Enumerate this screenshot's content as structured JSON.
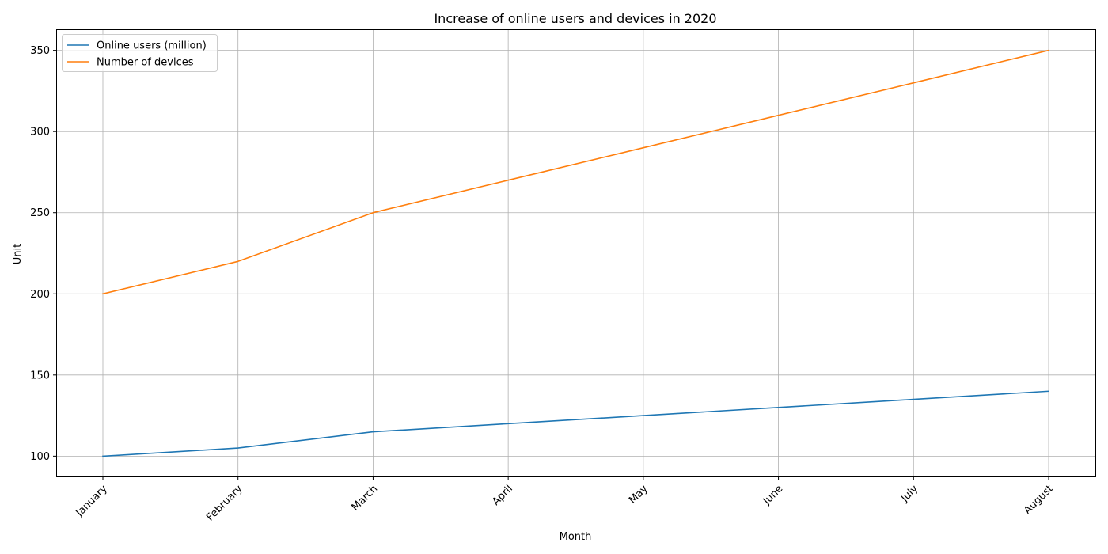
{
  "chart_data": {
    "type": "line",
    "title": "Increase of online users and devices in 2020",
    "xlabel": "Month",
    "ylabel": "Unit",
    "categories": [
      "January",
      "February",
      "March",
      "April",
      "May",
      "June",
      "July",
      "August"
    ],
    "series": [
      {
        "name": "Online users (million)",
        "values": [
          100,
          105,
          115,
          120,
          125,
          130,
          135,
          140
        ],
        "color": "#1f77b4"
      },
      {
        "name": "Number of devices",
        "values": [
          200,
          220,
          250,
          270,
          290,
          310,
          330,
          350
        ],
        "color": "#ff7f0e"
      }
    ],
    "ylim": [
      87.5,
      362.5
    ],
    "yticks": [
      100,
      150,
      200,
      250,
      300,
      350
    ],
    "grid": true,
    "legend": "top-left"
  }
}
